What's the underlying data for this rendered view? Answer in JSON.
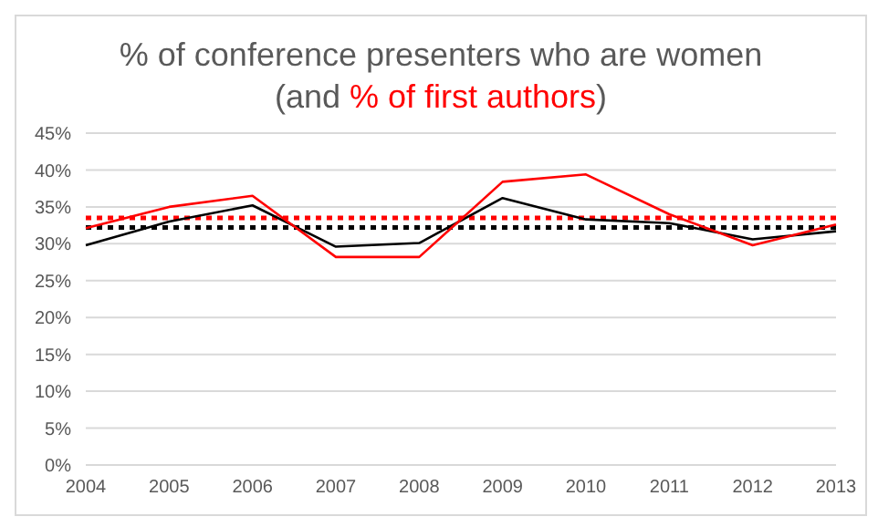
{
  "chart_data": {
    "type": "line",
    "title": "% of conference presenters who are women",
    "subtitle": "(and % of first authors)",
    "categories": [
      "2004",
      "2005",
      "2006",
      "2007",
      "2008",
      "2009",
      "2010",
      "2011",
      "2012",
      "2013"
    ],
    "series": [
      {
        "color": "#000000",
        "values": [
          29.8,
          33,
          35.2,
          29.6,
          30.1,
          36.2,
          33.3,
          32.8,
          30.6,
          31.7
        ]
      },
      {
        "color": "#ff0000",
        "values": [
          32.1,
          35,
          36.5,
          28.2,
          28.2,
          38.4,
          39.4,
          34,
          29.8,
          32.6
        ]
      }
    ],
    "ref_lines": [
      {
        "axis": "y",
        "value": 33.5,
        "color": "#ff0000",
        "line_style": "dotted"
      },
      {
        "axis": "y",
        "value": 32.2,
        "color": "#000000",
        "line_style": "dotted"
      }
    ],
    "ylim": [
      0,
      45
    ],
    "yticks": [
      {
        "value": 0,
        "label": "0%"
      },
      {
        "value": 5,
        "label": "5%"
      },
      {
        "value": 10,
        "label": "10%"
      },
      {
        "value": 15,
        "label": "15%"
      },
      {
        "value": 20,
        "label": "20%"
      },
      {
        "value": 25,
        "label": "25%"
      },
      {
        "value": 30,
        "label": "30%"
      },
      {
        "value": 35,
        "label": "35%"
      },
      {
        "value": 40,
        "label": "40%"
      },
      {
        "value": 45,
        "label": "45%"
      }
    ],
    "grid": "y",
    "marker": "none",
    "line_style": "solid",
    "legend": false
  }
}
